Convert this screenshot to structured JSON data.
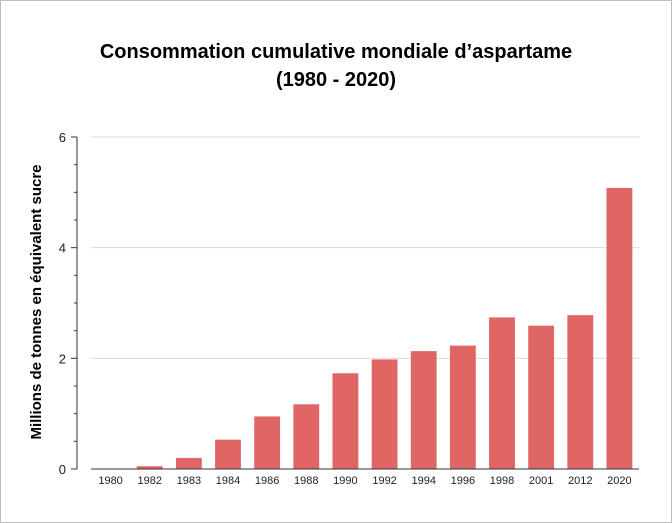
{
  "chart_data": {
    "type": "bar",
    "title": "Consommation cumulative mondiale d’aspartame",
    "subtitle": "(1980 - 2020)",
    "xlabel": "",
    "ylabel": "Millions de tonnes en équivalent sucre",
    "categories": [
      "1980",
      "1982",
      "1983",
      "1984",
      "1986",
      "1988",
      "1990",
      "1992",
      "1994",
      "1996",
      "1998",
      "2001",
      "2012",
      "2020"
    ],
    "values": [
      0.0,
      0.05,
      0.2,
      0.53,
      0.95,
      1.17,
      1.73,
      1.98,
      2.13,
      2.23,
      2.74,
      2.59,
      2.78,
      5.08
    ],
    "ylim": [
      0,
      6
    ],
    "yticks": [
      0,
      2,
      4,
      6
    ],
    "grid": true,
    "legend": "none",
    "bar_color": "#e06666",
    "grid_color": "#d9d9d9"
  }
}
